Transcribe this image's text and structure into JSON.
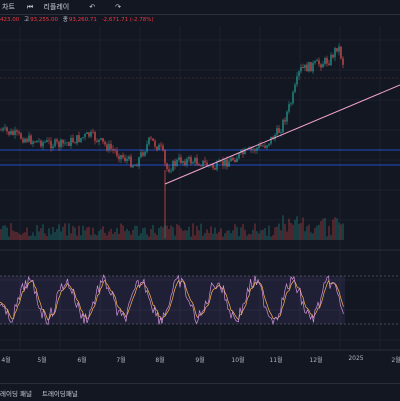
{
  "toolbar": {
    "chart_label": "차트",
    "replay_icon": "replay-icon",
    "replay_label": "리플레이",
    "undo_icon": "undo-icon",
    "redo_icon": "redo-icon"
  },
  "ohlc": {
    "open_value": "423.00",
    "high_label": "고",
    "high_value": "93,255.00",
    "low_label": "종",
    "low_value": "93,260.71",
    "change": "-2,671.71 (-2.78%)"
  },
  "colors": {
    "background": "#131722",
    "candle_up": "#26a69a",
    "candle_down": "#ef5350",
    "trendline": "#f7a5d1",
    "hline": "#2962ff",
    "indicator_fast": "#ce93d8",
    "indicator_slow": "#ffb74d",
    "indicator_band": "#7e57c2"
  },
  "time_axis": {
    "labels": [
      "4월",
      "5월",
      "6월",
      "7월",
      "8월",
      "9월",
      "10월",
      "11월",
      "12월",
      "2025",
      "2월"
    ]
  },
  "bottom_panel": {
    "tab_trading_panel_1": "레이딩 패널",
    "tab_trading_panel_2": "트레이딩패널"
  }
}
